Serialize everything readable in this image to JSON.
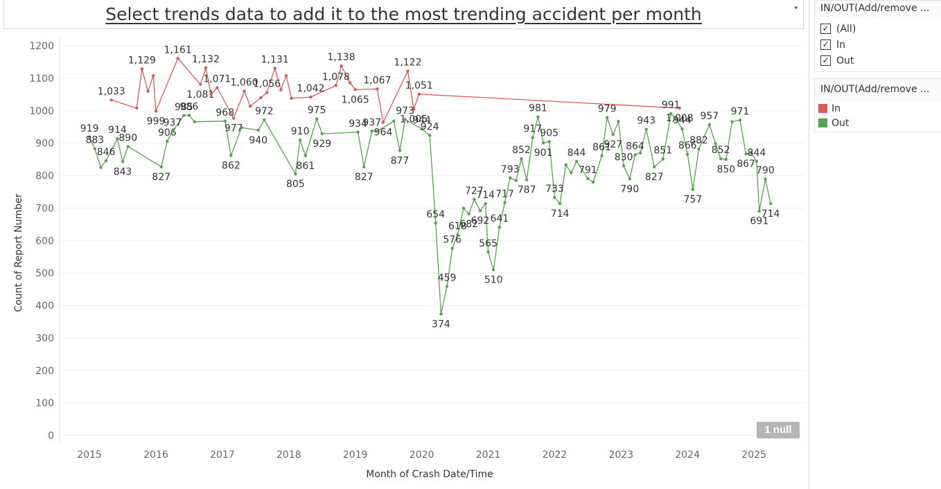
{
  "header": {
    "title": "Select trends data to add it to the most trending accident per month",
    "caret": "▾"
  },
  "filter_card": {
    "title": "IN/OUT(Add/remove ...",
    "options": [
      {
        "label": "(All)",
        "checked": true,
        "mark": "✓"
      },
      {
        "label": "In",
        "checked": true,
        "mark": "✓"
      },
      {
        "label": "Out",
        "checked": true,
        "mark": "✓"
      }
    ]
  },
  "legend_card": {
    "title": "IN/OUT(Add/remove ...",
    "items": [
      {
        "label": "In",
        "color": "#e15759"
      },
      {
        "label": "Out",
        "color": "#59a14f"
      }
    ]
  },
  "null_badge": "1 null",
  "chart_data": {
    "type": "line",
    "title": "",
    "xlabel": "Month of Crash Date/Time",
    "ylabel": "Count of Report Number",
    "xlim": [
      2014.55,
      2025.75
    ],
    "ylim": [
      -20,
      1230
    ],
    "x_ticks": [
      2015,
      2016,
      2017,
      2018,
      2019,
      2020,
      2021,
      2022,
      2023,
      2024,
      2025
    ],
    "y_ticks": [
      0,
      100,
      200,
      300,
      400,
      500,
      600,
      700,
      800,
      900,
      1000,
      1100,
      1200
    ],
    "grid": true,
    "series": [
      {
        "name": "In",
        "color": "#e15759",
        "points": [
          {
            "x": 2015.33,
            "y": 1033,
            "label": "1,033"
          },
          {
            "x": 2015.71,
            "y": 1008
          },
          {
            "x": 2015.79,
            "y": 1129,
            "label": "1,129"
          },
          {
            "x": 2015.88,
            "y": 1060
          },
          {
            "x": 2015.96,
            "y": 1108
          },
          {
            "x": 2016.0,
            "y": 999,
            "label": "999"
          },
          {
            "x": 2016.33,
            "y": 1161,
            "label": "1,161"
          },
          {
            "x": 2016.67,
            "y": 1081,
            "label": "1,081"
          },
          {
            "x": 2016.75,
            "y": 1132,
            "label": "1,132"
          },
          {
            "x": 2016.83,
            "y": 1050
          },
          {
            "x": 2016.92,
            "y": 1071,
            "label": "1,071"
          },
          {
            "x": 2017.17,
            "y": 977,
            "label": "977"
          },
          {
            "x": 2017.33,
            "y": 1060,
            "label": "1,060"
          },
          {
            "x": 2017.42,
            "y": 1014
          },
          {
            "x": 2017.58,
            "y": 1040
          },
          {
            "x": 2017.67,
            "y": 1056,
            "label": "1,056"
          },
          {
            "x": 2017.79,
            "y": 1131,
            "label": "1,131"
          },
          {
            "x": 2017.88,
            "y": 1064
          },
          {
            "x": 2017.96,
            "y": 1108
          },
          {
            "x": 2018.04,
            "y": 1038
          },
          {
            "x": 2018.33,
            "y": 1042,
            "label": "1,042"
          },
          {
            "x": 2018.71,
            "y": 1078,
            "label": "1,078"
          },
          {
            "x": 2018.79,
            "y": 1138,
            "label": "1,138"
          },
          {
            "x": 2018.92,
            "y": 1086
          },
          {
            "x": 2019.0,
            "y": 1065,
            "label": "1,065"
          },
          {
            "x": 2019.33,
            "y": 1067,
            "label": "1,067"
          },
          {
            "x": 2019.42,
            "y": 964,
            "label": "964"
          },
          {
            "x": 2019.79,
            "y": 1122,
            "label": "1,122"
          },
          {
            "x": 2019.88,
            "y": 1005,
            "label": "1,005"
          },
          {
            "x": 2019.96,
            "y": 1051,
            "label": "1,051"
          },
          {
            "x": 2023.88,
            "y": 1008,
            "label": "1,008"
          }
        ]
      },
      {
        "name": "Out",
        "color": "#59a14f",
        "points": [
          {
            "x": 2015.0,
            "y": 919,
            "label": "919"
          },
          {
            "x": 2015.08,
            "y": 883,
            "label": "883"
          },
          {
            "x": 2015.17,
            "y": 825
          },
          {
            "x": 2015.25,
            "y": 846,
            "label": "846"
          },
          {
            "x": 2015.42,
            "y": 914,
            "label": "914"
          },
          {
            "x": 2015.5,
            "y": 843,
            "label": "843"
          },
          {
            "x": 2015.58,
            "y": 890,
            "label": "890"
          },
          {
            "x": 2016.08,
            "y": 827,
            "label": "827"
          },
          {
            "x": 2016.17,
            "y": 906,
            "label": "906"
          },
          {
            "x": 2016.25,
            "y": 937,
            "label": "937"
          },
          {
            "x": 2016.42,
            "y": 985,
            "label": "985"
          },
          {
            "x": 2016.5,
            "y": 986,
            "label": "986"
          },
          {
            "x": 2016.58,
            "y": 966
          },
          {
            "x": 2017.04,
            "y": 968,
            "label": "968"
          },
          {
            "x": 2017.13,
            "y": 862,
            "label": "862"
          },
          {
            "x": 2017.29,
            "y": 948
          },
          {
            "x": 2017.54,
            "y": 940,
            "label": "940"
          },
          {
            "x": 2017.63,
            "y": 972,
            "label": "972"
          },
          {
            "x": 2018.1,
            "y": 805,
            "label": "805"
          },
          {
            "x": 2018.17,
            "y": 910,
            "label": "910"
          },
          {
            "x": 2018.25,
            "y": 861,
            "label": "861"
          },
          {
            "x": 2018.42,
            "y": 975,
            "label": "975"
          },
          {
            "x": 2018.5,
            "y": 929,
            "label": "929"
          },
          {
            "x": 2019.04,
            "y": 934,
            "label": "934"
          },
          {
            "x": 2019.13,
            "y": 827,
            "label": "827"
          },
          {
            "x": 2019.25,
            "y": 937,
            "label": "937"
          },
          {
            "x": 2019.33,
            "y": 937
          },
          {
            "x": 2019.58,
            "y": 968
          },
          {
            "x": 2019.67,
            "y": 877,
            "label": "877"
          },
          {
            "x": 2019.75,
            "y": 973,
            "label": "973"
          },
          {
            "x": 2020.0,
            "y": 944,
            "label": "944"
          },
          {
            "x": 2020.12,
            "y": 924,
            "label": "924"
          },
          {
            "x": 2020.21,
            "y": 654,
            "label": "654"
          },
          {
            "x": 2020.29,
            "y": 374,
            "label": "374"
          },
          {
            "x": 2020.38,
            "y": 459,
            "label": "459"
          },
          {
            "x": 2020.46,
            "y": 576,
            "label": "576"
          },
          {
            "x": 2020.54,
            "y": 618,
            "label": "618"
          },
          {
            "x": 2020.63,
            "y": 700
          },
          {
            "x": 2020.71,
            "y": 682,
            "label": "682"
          },
          {
            "x": 2020.79,
            "y": 727,
            "label": "727"
          },
          {
            "x": 2020.88,
            "y": 692,
            "label": "692"
          },
          {
            "x": 2020.96,
            "y": 714,
            "label": "714"
          },
          {
            "x": 2021.0,
            "y": 565,
            "label": "565"
          },
          {
            "x": 2021.08,
            "y": 510,
            "label": "510"
          },
          {
            "x": 2021.17,
            "y": 641,
            "label": "641"
          },
          {
            "x": 2021.25,
            "y": 717,
            "label": "717"
          },
          {
            "x": 2021.33,
            "y": 793,
            "label": "793"
          },
          {
            "x": 2021.42,
            "y": 785
          },
          {
            "x": 2021.5,
            "y": 852,
            "label": "852"
          },
          {
            "x": 2021.58,
            "y": 787,
            "label": "787"
          },
          {
            "x": 2021.67,
            "y": 917,
            "label": "917"
          },
          {
            "x": 2021.75,
            "y": 981,
            "label": "981"
          },
          {
            "x": 2021.83,
            "y": 901,
            "label": "901"
          },
          {
            "x": 2021.92,
            "y": 905,
            "label": "905"
          },
          {
            "x": 2022.0,
            "y": 733,
            "label": "733"
          },
          {
            "x": 2022.08,
            "y": 714,
            "label": "714"
          },
          {
            "x": 2022.17,
            "y": 833
          },
          {
            "x": 2022.25,
            "y": 809
          },
          {
            "x": 2022.33,
            "y": 844,
            "label": "844"
          },
          {
            "x": 2022.5,
            "y": 791,
            "label": "791"
          },
          {
            "x": 2022.58,
            "y": 780
          },
          {
            "x": 2022.71,
            "y": 861,
            "label": "861"
          },
          {
            "x": 2022.79,
            "y": 979,
            "label": "979"
          },
          {
            "x": 2022.88,
            "y": 927,
            "label": "927"
          },
          {
            "x": 2022.96,
            "y": 967
          },
          {
            "x": 2023.04,
            "y": 830,
            "label": "830"
          },
          {
            "x": 2023.13,
            "y": 790,
            "label": "790"
          },
          {
            "x": 2023.21,
            "y": 864,
            "label": "864"
          },
          {
            "x": 2023.29,
            "y": 870
          },
          {
            "x": 2023.38,
            "y": 943,
            "label": "943"
          },
          {
            "x": 2023.5,
            "y": 827,
            "label": "827"
          },
          {
            "x": 2023.63,
            "y": 851,
            "label": "851"
          },
          {
            "x": 2023.75,
            "y": 991,
            "label": "991"
          },
          {
            "x": 2023.83,
            "y": 975
          },
          {
            "x": 2023.92,
            "y": 944,
            "label": "944"
          },
          {
            "x": 2024.0,
            "y": 866,
            "label": "866"
          },
          {
            "x": 2024.08,
            "y": 757,
            "label": "757"
          },
          {
            "x": 2024.17,
            "y": 882,
            "label": "882"
          },
          {
            "x": 2024.33,
            "y": 957,
            "label": "957"
          },
          {
            "x": 2024.42,
            "y": 899
          },
          {
            "x": 2024.5,
            "y": 852,
            "label": "852"
          },
          {
            "x": 2024.58,
            "y": 850,
            "label": "850"
          },
          {
            "x": 2024.67,
            "y": 966
          },
          {
            "x": 2024.79,
            "y": 971,
            "label": "971"
          },
          {
            "x": 2024.88,
            "y": 867,
            "label": "867"
          },
          {
            "x": 2024.96,
            "y": 870
          },
          {
            "x": 2025.04,
            "y": 844,
            "label": "844"
          },
          {
            "x": 2025.08,
            "y": 691,
            "label": "691"
          },
          {
            "x": 2025.17,
            "y": 790,
            "label": "790"
          },
          {
            "x": 2025.25,
            "y": 714,
            "label": "714"
          }
        ]
      }
    ]
  }
}
